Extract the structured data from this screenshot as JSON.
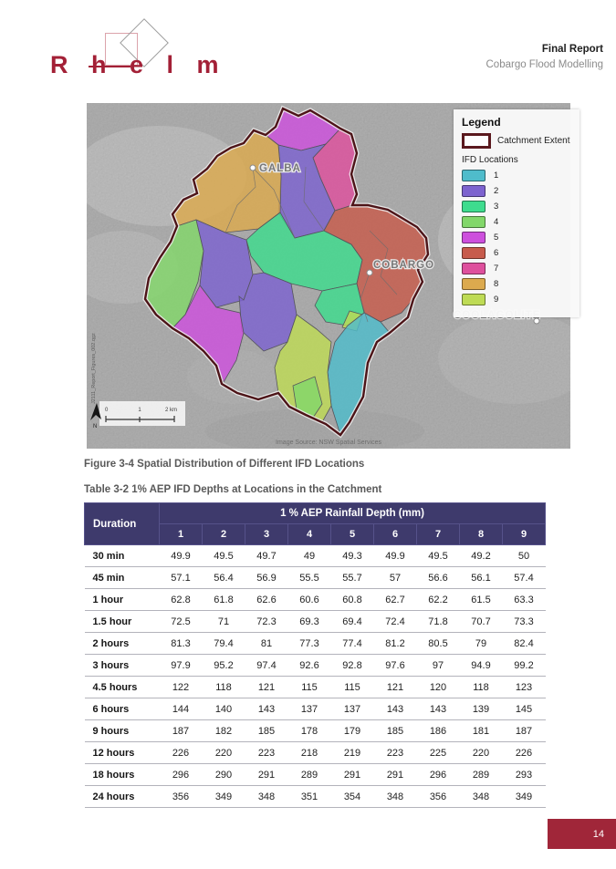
{
  "header": {
    "logo_text": "R h e l m",
    "report_type": "Final Report",
    "report_title": "Cobargo Flood Modelling"
  },
  "map": {
    "towns": [
      {
        "name": "GALBA"
      },
      {
        "name": "COBARGO"
      },
      {
        "name": "COOLAGOLITE"
      }
    ],
    "legend": {
      "title": "Legend",
      "catchment_label": "Catchment Extent",
      "group_label": "IFD Locations",
      "items": [
        {
          "label": "1",
          "color": "#4fbccb"
        },
        {
          "label": "2",
          "color": "#7d63cf"
        },
        {
          "label": "3",
          "color": "#3edc8e"
        },
        {
          "label": "4",
          "color": "#82d76a"
        },
        {
          "label": "5",
          "color": "#cd50dd"
        },
        {
          "label": "6",
          "color": "#c75b4c"
        },
        {
          "label": "7",
          "color": "#de509d"
        },
        {
          "label": "8",
          "color": "#dcaa4e"
        },
        {
          "label": "9",
          "color": "#bedb55"
        }
      ],
      "boundary_color": "#4d1418"
    },
    "scale_labels": [
      "0",
      "1",
      "2 km"
    ],
    "north_label": "N",
    "credit": "Image Source: NSW Spatial Services",
    "side_text": "J2111_Report_Figures_002.qgz"
  },
  "figure_caption": "Figure 3-4 Spatial Distribution of Different IFD Locations",
  "table_caption": "Table 3-2 1% AEP IFD Depths at Locations in the Catchment",
  "table": {
    "col1_header": "Duration",
    "span_header": "1 % AEP Rainfall Depth (mm)",
    "location_headers": [
      "1",
      "2",
      "3",
      "4",
      "5",
      "6",
      "7",
      "8",
      "9"
    ],
    "rows": [
      {
        "duration": "30 min",
        "values": [
          49.9,
          49.5,
          49.7,
          49,
          49.3,
          49.9,
          49.5,
          49.2,
          50
        ]
      },
      {
        "duration": "45 min",
        "values": [
          57.1,
          56.4,
          56.9,
          55.5,
          55.7,
          57,
          56.6,
          56.1,
          57.4
        ]
      },
      {
        "duration": "1 hour",
        "values": [
          62.8,
          61.8,
          62.6,
          60.6,
          60.8,
          62.7,
          62.2,
          61.5,
          63.3
        ]
      },
      {
        "duration": "1.5 hour",
        "values": [
          72.5,
          71,
          72.3,
          69.3,
          69.4,
          72.4,
          71.8,
          70.7,
          73.3
        ]
      },
      {
        "duration": "2 hours",
        "values": [
          81.3,
          79.4,
          81,
          77.3,
          77.4,
          81.2,
          80.5,
          79,
          82.4
        ]
      },
      {
        "duration": "3 hours",
        "values": [
          97.9,
          95.2,
          97.4,
          92.6,
          92.8,
          97.6,
          97,
          94.9,
          99.2
        ]
      },
      {
        "duration": "4.5 hours",
        "values": [
          122,
          118,
          121,
          115,
          115,
          121,
          120,
          118,
          123
        ]
      },
      {
        "duration": "6 hours",
        "values": [
          144,
          140,
          143,
          137,
          137,
          143,
          143,
          139,
          145
        ]
      },
      {
        "duration": "9 hours",
        "values": [
          187,
          182,
          185,
          178,
          179,
          185,
          186,
          181,
          187
        ]
      },
      {
        "duration": "12 hours",
        "values": [
          226,
          220,
          223,
          218,
          219,
          223,
          225,
          220,
          226
        ]
      },
      {
        "duration": "18 hours",
        "values": [
          296,
          290,
          291,
          289,
          291,
          291,
          296,
          289,
          293
        ]
      },
      {
        "duration": "24 hours",
        "values": [
          356,
          349,
          348,
          351,
          354,
          348,
          356,
          348,
          349
        ]
      }
    ]
  },
  "footer": {
    "page_number": "14"
  }
}
